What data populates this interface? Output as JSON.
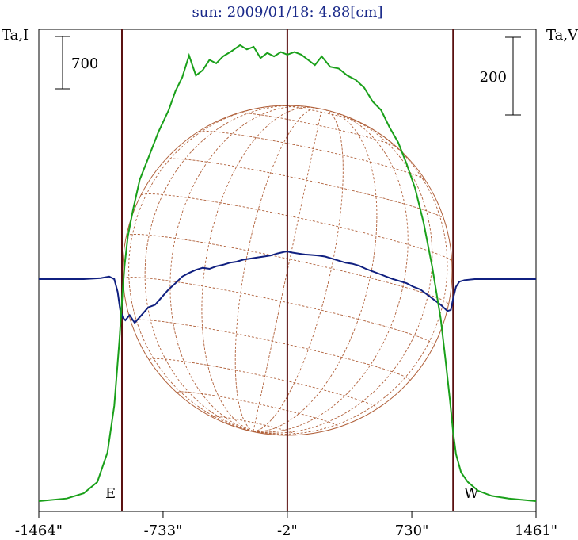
{
  "title": "sun: 2009/01/18: 4.88[cm]",
  "left_axis_label": "Ta,I",
  "right_axis_label": "Ta,V",
  "scale_bars": {
    "left_value": "700",
    "right_value": "200"
  },
  "limb_labels": {
    "east": "E",
    "west": "W"
  },
  "chart_data": {
    "type": "line",
    "title": "sun: 2009/01/18: 4.88[cm]",
    "xlabel": "",
    "x_ticks": [
      "-1464\"",
      "-733\"",
      "-2\"",
      "730\"",
      "1461\""
    ],
    "x_tick_values": [
      -1464,
      -733,
      -2,
      730,
      1461
    ],
    "xlim": [
      -1464,
      1461
    ],
    "vertical_markers": [
      -975,
      -2,
      973
    ],
    "colors": {
      "I": "#1aa01a",
      "V": "#102080",
      "disk": "#b0603a",
      "marker": "#5a1010"
    },
    "series": [
      {
        "key": "I",
        "axis": "left",
        "x": [
          -1464,
          -1300,
          -1200,
          -1120,
          -1060,
          -1020,
          -990,
          -975,
          -960,
          -940,
          -910,
          -870,
          -820,
          -760,
          -700,
          -660,
          -620,
          -580,
          -540,
          -500,
          -460,
          -420,
          -380,
          -330,
          -280,
          -240,
          -200,
          -160,
          -120,
          -80,
          -40,
          -2,
          40,
          80,
          120,
          160,
          200,
          250,
          300,
          350,
          400,
          450,
          500,
          550,
          600,
          650,
          700,
          750,
          800,
          850,
          900,
          930,
          955,
          973,
          990,
          1020,
          1060,
          1120,
          1200,
          1300,
          1461
        ],
        "y": [
          0,
          30,
          90,
          220,
          560,
          1100,
          1850,
          2300,
          2700,
          3050,
          3350,
          3700,
          3950,
          4250,
          4500,
          4720,
          4880,
          5130,
          4900,
          4960,
          5080,
          5040,
          5120,
          5180,
          5250,
          5200,
          5230,
          5100,
          5160,
          5120,
          5170,
          5140,
          5170,
          5140,
          5080,
          5020,
          5120,
          5000,
          4980,
          4900,
          4850,
          4760,
          4600,
          4500,
          4300,
          4130,
          3880,
          3600,
          3200,
          2700,
          2100,
          1600,
          1150,
          800,
          540,
          330,
          220,
          120,
          60,
          30,
          0
        ],
        "ylim": [
          0,
          5950
        ]
      },
      {
        "key": "V",
        "axis": "right",
        "x": [
          -1464,
          -1200,
          -1100,
          -1050,
          -1020,
          -1000,
          -985,
          -970,
          -955,
          -930,
          -900,
          -860,
          -820,
          -780,
          -740,
          -700,
          -660,
          -620,
          -580,
          -540,
          -500,
          -460,
          -420,
          -380,
          -340,
          -300,
          -260,
          -220,
          -180,
          -140,
          -100,
          -60,
          -20,
          -2,
          20,
          60,
          100,
          140,
          180,
          220,
          260,
          300,
          340,
          380,
          420,
          460,
          500,
          540,
          580,
          620,
          660,
          700,
          740,
          780,
          820,
          860,
          900,
          940,
          960,
          975,
          990,
          1010,
          1040,
          1100,
          1200,
          1461
        ],
        "y": [
          0,
          0,
          2,
          5,
          0,
          -25,
          -60,
          -75,
          -80,
          -70,
          -85,
          -70,
          -55,
          -50,
          -35,
          -20,
          -8,
          5,
          12,
          18,
          22,
          20,
          25,
          28,
          32,
          34,
          38,
          40,
          42,
          44,
          46,
          50,
          53,
          54,
          52,
          50,
          48,
          47,
          46,
          44,
          40,
          36,
          32,
          30,
          26,
          20,
          15,
          10,
          5,
          0,
          -4,
          -8,
          -15,
          -20,
          -30,
          -40,
          -50,
          -62,
          -60,
          -35,
          -15,
          -5,
          -2,
          0,
          0,
          0
        ],
        "ylim": [
          -315,
          420
        ]
      }
    ]
  }
}
